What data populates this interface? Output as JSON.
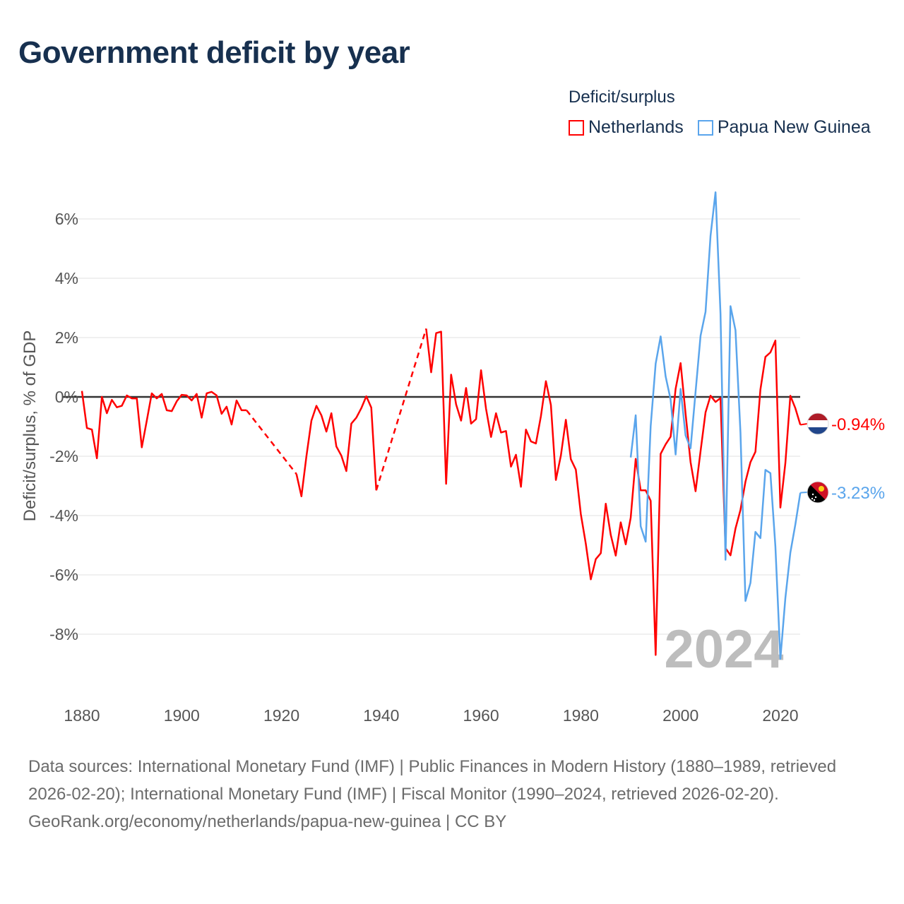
{
  "title": "Government deficit by year",
  "legend": {
    "title": "Deficit/surplus",
    "items": [
      {
        "name": "Netherlands",
        "color": "#ff0000"
      },
      {
        "name": "Papua New Guinea",
        "color": "#5aa5ec"
      }
    ]
  },
  "footer": {
    "sources": "Data sources: International Monetary Fund (IMF) | Public Finances in Modern History (1880–1989, retrieved 2026-02-20); International Monetary Fund (IMF) | Fiscal Monitor (1990–2024, retrieved 2026-02-20).",
    "credit": "GeoRank.org/economy/netherlands/papua-new-guinea | CC BY"
  },
  "chart_data": {
    "type": "line",
    "title": "Government deficit by year",
    "xlabel": "",
    "ylabel": "Deficit/surplus, % of GDP",
    "xlim": [
      1880,
      2024
    ],
    "ylim": [
      -10,
      7
    ],
    "x_ticks": [
      1880,
      1900,
      1920,
      1940,
      1960,
      1980,
      2000,
      2020
    ],
    "y_ticks": [
      6,
      4,
      2,
      0,
      -2,
      -4,
      -6,
      -8
    ],
    "y_tick_labels": [
      "6%",
      "4%",
      "2%",
      "0%",
      "-2%",
      "-4%",
      "-6%",
      "-8%"
    ],
    "x_tick_labels": [
      "1880",
      "1900",
      "1920",
      "1940",
      "1960",
      "1980",
      "2000",
      "2020"
    ],
    "grid": true,
    "legend_position": "top-right",
    "year_watermark": "2024",
    "gaps_drawn_dashed": [
      [
        1913,
        1923
      ],
      [
        1939,
        1949
      ]
    ],
    "series": [
      {
        "name": "Netherlands",
        "color": "#ff0000",
        "start_year": 1880,
        "end_label": "-0.94%",
        "values": [
          0.2,
          -1.05,
          -1.1,
          -2.07,
          0,
          -0.55,
          -0.1,
          -0.35,
          -0.3,
          0.05,
          -0.05,
          -0.05,
          -1.7,
          -0.8,
          0.12,
          -0.05,
          0.1,
          -0.45,
          -0.48,
          -0.15,
          0.07,
          0.05,
          -0.12,
          0.1,
          -0.7,
          0.12,
          0.17,
          0.05,
          -0.57,
          -0.33,
          -0.93,
          -0.12,
          -0.45,
          -0.45,
          null,
          null,
          null,
          null,
          null,
          null,
          null,
          null,
          null,
          -2.6,
          -3.35,
          -2.0,
          -0.8,
          -0.3,
          -0.62,
          -1.17,
          -0.55,
          -1.67,
          -1.98,
          -2.5,
          -0.9,
          -0.7,
          -0.38,
          0.02,
          -0.36,
          -3.15,
          null,
          null,
          null,
          null,
          null,
          null,
          null,
          null,
          null,
          2.3,
          0.83,
          2.15,
          2.2,
          -2.93,
          0.75,
          -0.25,
          -0.8,
          0.3,
          -0.9,
          -0.75,
          0.9,
          -0.4,
          -1.35,
          -0.55,
          -1.2,
          -1.15,
          -2.35,
          -1.95,
          -3.03,
          -1.1,
          -1.5,
          -1.57,
          -0.65,
          0.53,
          -0.27,
          -2.8,
          -1.98,
          -0.77,
          -2.1,
          -2.45,
          -3.95,
          -4.95,
          -6.15,
          -5.47,
          -5.27,
          -3.6,
          -4.65,
          -5.35,
          -4.23,
          -4.97,
          -4.07,
          -2.09,
          -3.15,
          -3.15,
          -3.5,
          -8.7,
          -1.92,
          -1.6,
          -1.34,
          0.27,
          1.14,
          -0.57,
          -2.2,
          -3.18,
          -1.83,
          -0.52,
          0.04,
          -0.17,
          -0.04,
          -5.1,
          -5.34,
          -4.44,
          -3.81,
          -2.86,
          -2.2,
          -1.85,
          0.25,
          1.35,
          1.5,
          1.9,
          -3.73,
          -2.23,
          0.04,
          -0.38,
          -0.94
        ]
      },
      {
        "name": "Papua New Guinea",
        "color": "#5aa5ec",
        "start_year": 1990,
        "end_label": "-3.23%",
        "values": [
          -2.04,
          -0.62,
          -4.36,
          -4.88,
          -0.99,
          1.12,
          2.04,
          0.69,
          -0.09,
          -1.94,
          0.27,
          -1.3,
          -1.73,
          0.17,
          2.06,
          2.87,
          5.43,
          6.9,
          2.8,
          -5.49,
          3.06,
          2.25,
          -1.2,
          -6.88,
          -6.27,
          -4.55,
          -4.76,
          -2.46,
          -2.57,
          -5.04,
          -8.83,
          -6.78,
          -5.25,
          -4.3,
          -3.23
        ]
      }
    ]
  }
}
